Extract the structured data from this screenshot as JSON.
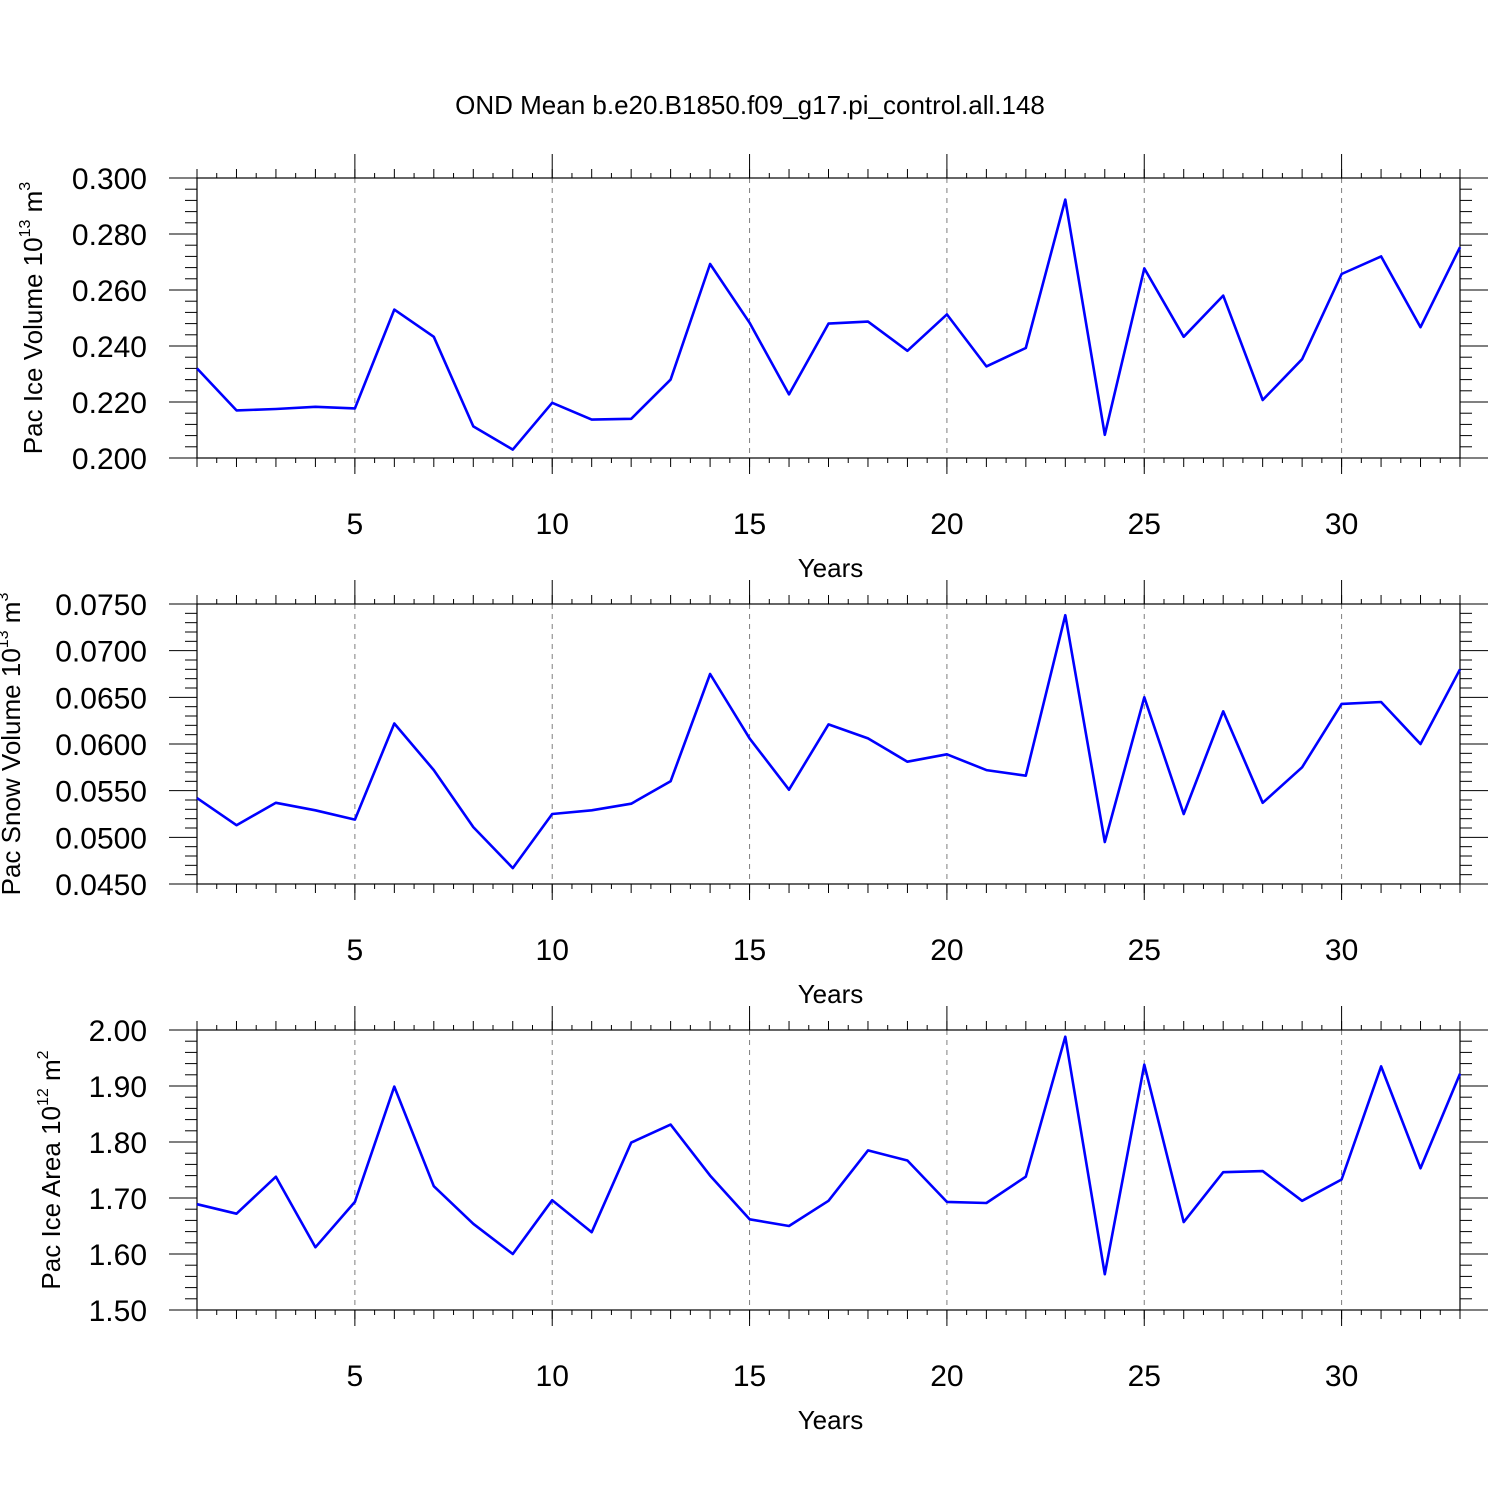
{
  "title": "OND Mean b.e20.B1850.f09_g17.pi_control.all.148",
  "colors": {
    "line": "#0000ff",
    "axis": "#000000",
    "grid": "#7f7f7f"
  },
  "chart_data": [
    {
      "type": "line",
      "name": "ice-volume",
      "ylabel": "Pac Ice Volume",
      "yunit": {
        "base": "10",
        "exp": "13",
        "unit": "m",
        "unit_exp": "3"
      },
      "xlabel": "Years",
      "xlim": [
        1,
        33
      ],
      "ylim": [
        0.2,
        0.3
      ],
      "xticks": [
        "5",
        "10",
        "15",
        "20",
        "25",
        "30"
      ],
      "yticks": [
        "0.200",
        "0.220",
        "0.240",
        "0.260",
        "0.280",
        "0.300"
      ],
      "x": [
        1,
        2,
        3,
        4,
        5,
        6,
        7,
        8,
        9,
        10,
        11,
        12,
        13,
        14,
        15,
        16,
        17,
        18,
        19,
        20,
        21,
        22,
        23,
        24,
        25,
        26,
        27,
        28,
        29,
        30,
        31,
        32,
        33
      ],
      "values": [
        0.232,
        0.217,
        0.2175,
        0.2183,
        0.2177,
        0.253,
        0.2433,
        0.2113,
        0.203,
        0.2197,
        0.2137,
        0.214,
        0.228,
        0.2693,
        0.2483,
        0.2227,
        0.248,
        0.2487,
        0.2383,
        0.2513,
        0.2327,
        0.2393,
        0.2923,
        0.2083,
        0.2677,
        0.2433,
        0.258,
        0.2207,
        0.2353,
        0.2657,
        0.272,
        0.2467,
        0.2753
      ]
    },
    {
      "type": "line",
      "name": "snow-volume",
      "ylabel": "Pac Snow Volume",
      "yunit": {
        "base": "10",
        "exp": "13",
        "unit": "m",
        "unit_exp": "3"
      },
      "xlabel": "Years",
      "xlim": [
        1,
        33
      ],
      "ylim": [
        0.045,
        0.075
      ],
      "xticks": [
        "5",
        "10",
        "15",
        "20",
        "25",
        "30"
      ],
      "yticks": [
        "0.0450",
        "0.0500",
        "0.0550",
        "0.0600",
        "0.0650",
        "0.0700",
        "0.0750"
      ],
      "x": [
        1,
        2,
        3,
        4,
        5,
        6,
        7,
        8,
        9,
        10,
        11,
        12,
        13,
        14,
        15,
        16,
        17,
        18,
        19,
        20,
        21,
        22,
        23,
        24,
        25,
        26,
        27,
        28,
        29,
        30,
        31,
        32,
        33
      ],
      "values": [
        0.0542,
        0.0513,
        0.0537,
        0.0529,
        0.0519,
        0.0622,
        0.0572,
        0.0511,
        0.0467,
        0.0525,
        0.0529,
        0.0536,
        0.056,
        0.0675,
        0.0606,
        0.0551,
        0.0621,
        0.0606,
        0.0581,
        0.0589,
        0.0572,
        0.0566,
        0.0738,
        0.0495,
        0.065,
        0.0525,
        0.0635,
        0.0537,
        0.0575,
        0.0643,
        0.0645,
        0.06,
        0.068
      ]
    },
    {
      "type": "line",
      "name": "ice-area",
      "ylabel": "Pac Ice Area",
      "yunit": {
        "base": "10",
        "exp": "12",
        "unit": "m",
        "unit_exp": "2"
      },
      "xlabel": "Years",
      "xlim": [
        1,
        33
      ],
      "ylim": [
        1.5,
        2.0
      ],
      "xticks": [
        "5",
        "10",
        "15",
        "20",
        "25",
        "30"
      ],
      "yticks": [
        "1.50",
        "1.60",
        "1.70",
        "1.80",
        "1.90",
        "2.00"
      ],
      "x": [
        1,
        2,
        3,
        4,
        5,
        6,
        7,
        8,
        9,
        10,
        11,
        12,
        13,
        14,
        15,
        16,
        17,
        18,
        19,
        20,
        21,
        22,
        23,
        24,
        25,
        26,
        27,
        28,
        29,
        30,
        31,
        32,
        33
      ],
      "values": [
        1.689,
        1.672,
        1.738,
        1.612,
        1.693,
        1.899,
        1.721,
        1.654,
        1.6,
        1.696,
        1.639,
        1.799,
        1.831,
        1.74,
        1.662,
        1.65,
        1.695,
        1.785,
        1.767,
        1.693,
        1.691,
        1.738,
        1.988,
        1.564,
        1.938,
        1.657,
        1.746,
        1.748,
        1.695,
        1.733,
        1.935,
        1.753,
        1.922
      ]
    }
  ]
}
